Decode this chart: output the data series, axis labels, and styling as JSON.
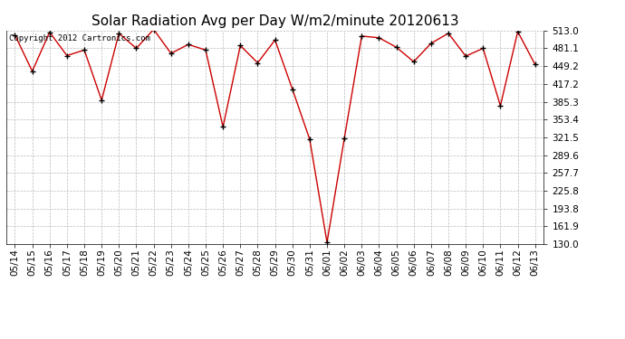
{
  "title": "Solar Radiation Avg per Day W/m2/minute 20120613",
  "copyright": "Copyright 2012 Cartronics.com",
  "dates": [
    "05/14",
    "05/15",
    "05/16",
    "05/17",
    "05/18",
    "05/19",
    "05/20",
    "05/21",
    "05/22",
    "05/23",
    "05/24",
    "05/25",
    "05/26",
    "05/27",
    "05/28",
    "05/29",
    "05/30",
    "05/31",
    "06/01",
    "06/02",
    "06/03",
    "06/04",
    "06/05",
    "06/06",
    "06/07",
    "06/08",
    "06/09",
    "06/10",
    "06/11",
    "06/12",
    "06/13"
  ],
  "values": [
    505,
    440,
    510,
    468,
    478,
    388,
    508,
    481,
    515,
    472,
    488,
    478,
    340,
    486,
    455,
    496,
    408,
    318,
    133,
    320,
    503,
    500,
    483,
    457,
    490,
    508,
    467,
    481,
    378,
    511,
    452
  ],
  "line_color": "#cc0000",
  "marker_color": "#000000",
  "bg_color": "#ffffff",
  "grid_color": "#bbbbbb",
  "ylim": [
    130.0,
    513.0
  ],
  "yticks": [
    130.0,
    161.9,
    193.8,
    225.8,
    257.7,
    289.6,
    321.5,
    353.4,
    385.3,
    417.2,
    449.2,
    481.1,
    513.0
  ],
  "title_fontsize": 11,
  "tick_fontsize": 7.5,
  "copyright_fontsize": 6.5
}
